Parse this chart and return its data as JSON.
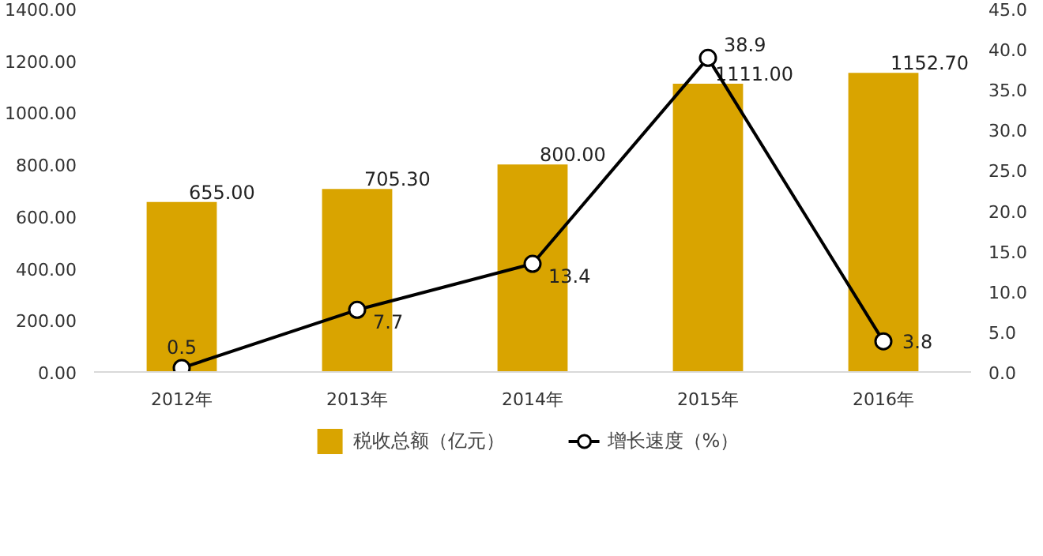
{
  "chart_data": {
    "type": "bar",
    "categories": [
      "2012年",
      "2013年",
      "2014年",
      "2015年",
      "2016年"
    ],
    "series": [
      {
        "name": "税收总额（亿元）",
        "color": "#d9a400",
        "values": [
          655.0,
          705.3,
          800.0,
          1111.0,
          1152.7
        ],
        "value_labels": [
          "655.00",
          "705.30",
          "800.00",
          "1111.00",
          "1152.70"
        ]
      },
      {
        "name": "增长速度（%）",
        "type": "line",
        "axis": "y2",
        "color": "#000000",
        "values": [
          0.5,
          7.7,
          13.4,
          38.9,
          3.8
        ],
        "value_labels": [
          "0.5",
          "7.7",
          "13.4",
          "38.9",
          "3.8"
        ]
      }
    ],
    "ylim": [
      0,
      1400
    ],
    "yticks": [
      {
        "value": 0,
        "label": "0.00"
      },
      {
        "value": 200,
        "label": "200.00"
      },
      {
        "value": 400,
        "label": "400.00"
      },
      {
        "value": 600,
        "label": "600.00"
      },
      {
        "value": 800,
        "label": "800.00"
      },
      {
        "value": 1000,
        "label": "1000.00"
      },
      {
        "value": 1200,
        "label": "1200.00"
      },
      {
        "value": 1400,
        "label": "1400.00"
      }
    ],
    "y2lim": [
      0,
      45
    ],
    "y2ticks": [
      {
        "value": 0,
        "label": "0.0"
      },
      {
        "value": 5,
        "label": "5.0"
      },
      {
        "value": 10,
        "label": "10.0"
      },
      {
        "value": 15,
        "label": "15.0"
      },
      {
        "value": 20,
        "label": "20.0"
      },
      {
        "value": 25,
        "label": "25.0"
      },
      {
        "value": 30,
        "label": "30.0"
      },
      {
        "value": 35,
        "label": "35.0"
      },
      {
        "value": 40,
        "label": "40.0"
      },
      {
        "value": 45,
        "label": "45.0"
      }
    ],
    "marker": "circle",
    "grid": false,
    "legend": "bottom"
  }
}
